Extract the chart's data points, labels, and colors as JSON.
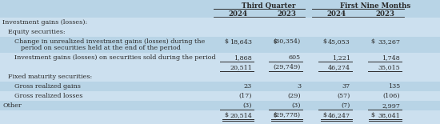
{
  "col_headers_top": [
    "Third Quarter",
    "First Nine Months"
  ],
  "col_headers_sub": [
    "2024",
    "2023",
    "2024",
    "2023"
  ],
  "rows": [
    {
      "label": "Investment gains (losses):",
      "indent": 0,
      "bold": false,
      "values": [
        "",
        "",
        "",
        ""
      ],
      "show_dollar": [
        false,
        false,
        false,
        false
      ],
      "underline": false,
      "double_underline": false,
      "bg": "light"
    },
    {
      "label": "Equity securities:",
      "indent": 1,
      "bold": false,
      "values": [
        "",
        "",
        "",
        ""
      ],
      "show_dollar": [
        false,
        false,
        false,
        false
      ],
      "underline": false,
      "double_underline": false,
      "bg": "light"
    },
    {
      "label": "Change in unrealized investment gains (losses) during the",
      "label2": "period on securities held at the end of the period",
      "indent": 2,
      "bold": false,
      "values": [
        "18,643",
        "(30,354)",
        "45,053",
        "33,267"
      ],
      "show_dollar": [
        true,
        true,
        true,
        true
      ],
      "underline": false,
      "double_underline": false,
      "bg": "dark"
    },
    {
      "label": "Investment gains (losses) on securities sold during the period",
      "label2": null,
      "indent": 2,
      "bold": false,
      "values": [
        "1,868",
        "605",
        "1,221",
        "1,748"
      ],
      "show_dollar": [
        false,
        false,
        false,
        false
      ],
      "underline": true,
      "double_underline": false,
      "bg": "light"
    },
    {
      "label": "",
      "label2": null,
      "indent": 2,
      "bold": false,
      "values": [
        "20,511",
        "(29,749)",
        "46,274",
        "35,015"
      ],
      "show_dollar": [
        false,
        false,
        false,
        false
      ],
      "underline": true,
      "double_underline": false,
      "bg": "light"
    },
    {
      "label": "Fixed maturity securities:",
      "indent": 1,
      "bold": false,
      "values": [
        "",
        "",
        "",
        ""
      ],
      "show_dollar": [
        false,
        false,
        false,
        false
      ],
      "underline": false,
      "double_underline": false,
      "bg": "light"
    },
    {
      "label": "Gross realized gains",
      "label2": null,
      "indent": 2,
      "bold": false,
      "values": [
        "23",
        "3",
        "37",
        "135"
      ],
      "show_dollar": [
        false,
        false,
        false,
        false
      ],
      "underline": false,
      "double_underline": false,
      "bg": "dark"
    },
    {
      "label": "Gross realized losses",
      "label2": null,
      "indent": 2,
      "bold": false,
      "values": [
        "(17)",
        "(29)",
        "(57)",
        "(106)"
      ],
      "show_dollar": [
        false,
        false,
        false,
        false
      ],
      "underline": false,
      "double_underline": false,
      "bg": "light"
    },
    {
      "label": "Other",
      "label2": null,
      "indent": 0,
      "bold": false,
      "values": [
        "(3)",
        "(3)",
        "(7)",
        "2,997"
      ],
      "show_dollar": [
        false,
        false,
        false,
        false
      ],
      "underline": true,
      "double_underline": false,
      "bg": "dark"
    },
    {
      "label": "",
      "label2": null,
      "indent": 0,
      "bold": false,
      "values": [
        "20,514",
        "(29,778)",
        "46,247",
        "38,041"
      ],
      "show_dollar": [
        true,
        true,
        true,
        true
      ],
      "underline": true,
      "double_underline": true,
      "bg": "light"
    }
  ],
  "bg_light": "#cce0ef",
  "bg_dark": "#b8d4e6",
  "bg_header": "#b8d4e6",
  "text_color": "#2a2a2a",
  "font_size": 5.8,
  "header_font_size": 6.2
}
